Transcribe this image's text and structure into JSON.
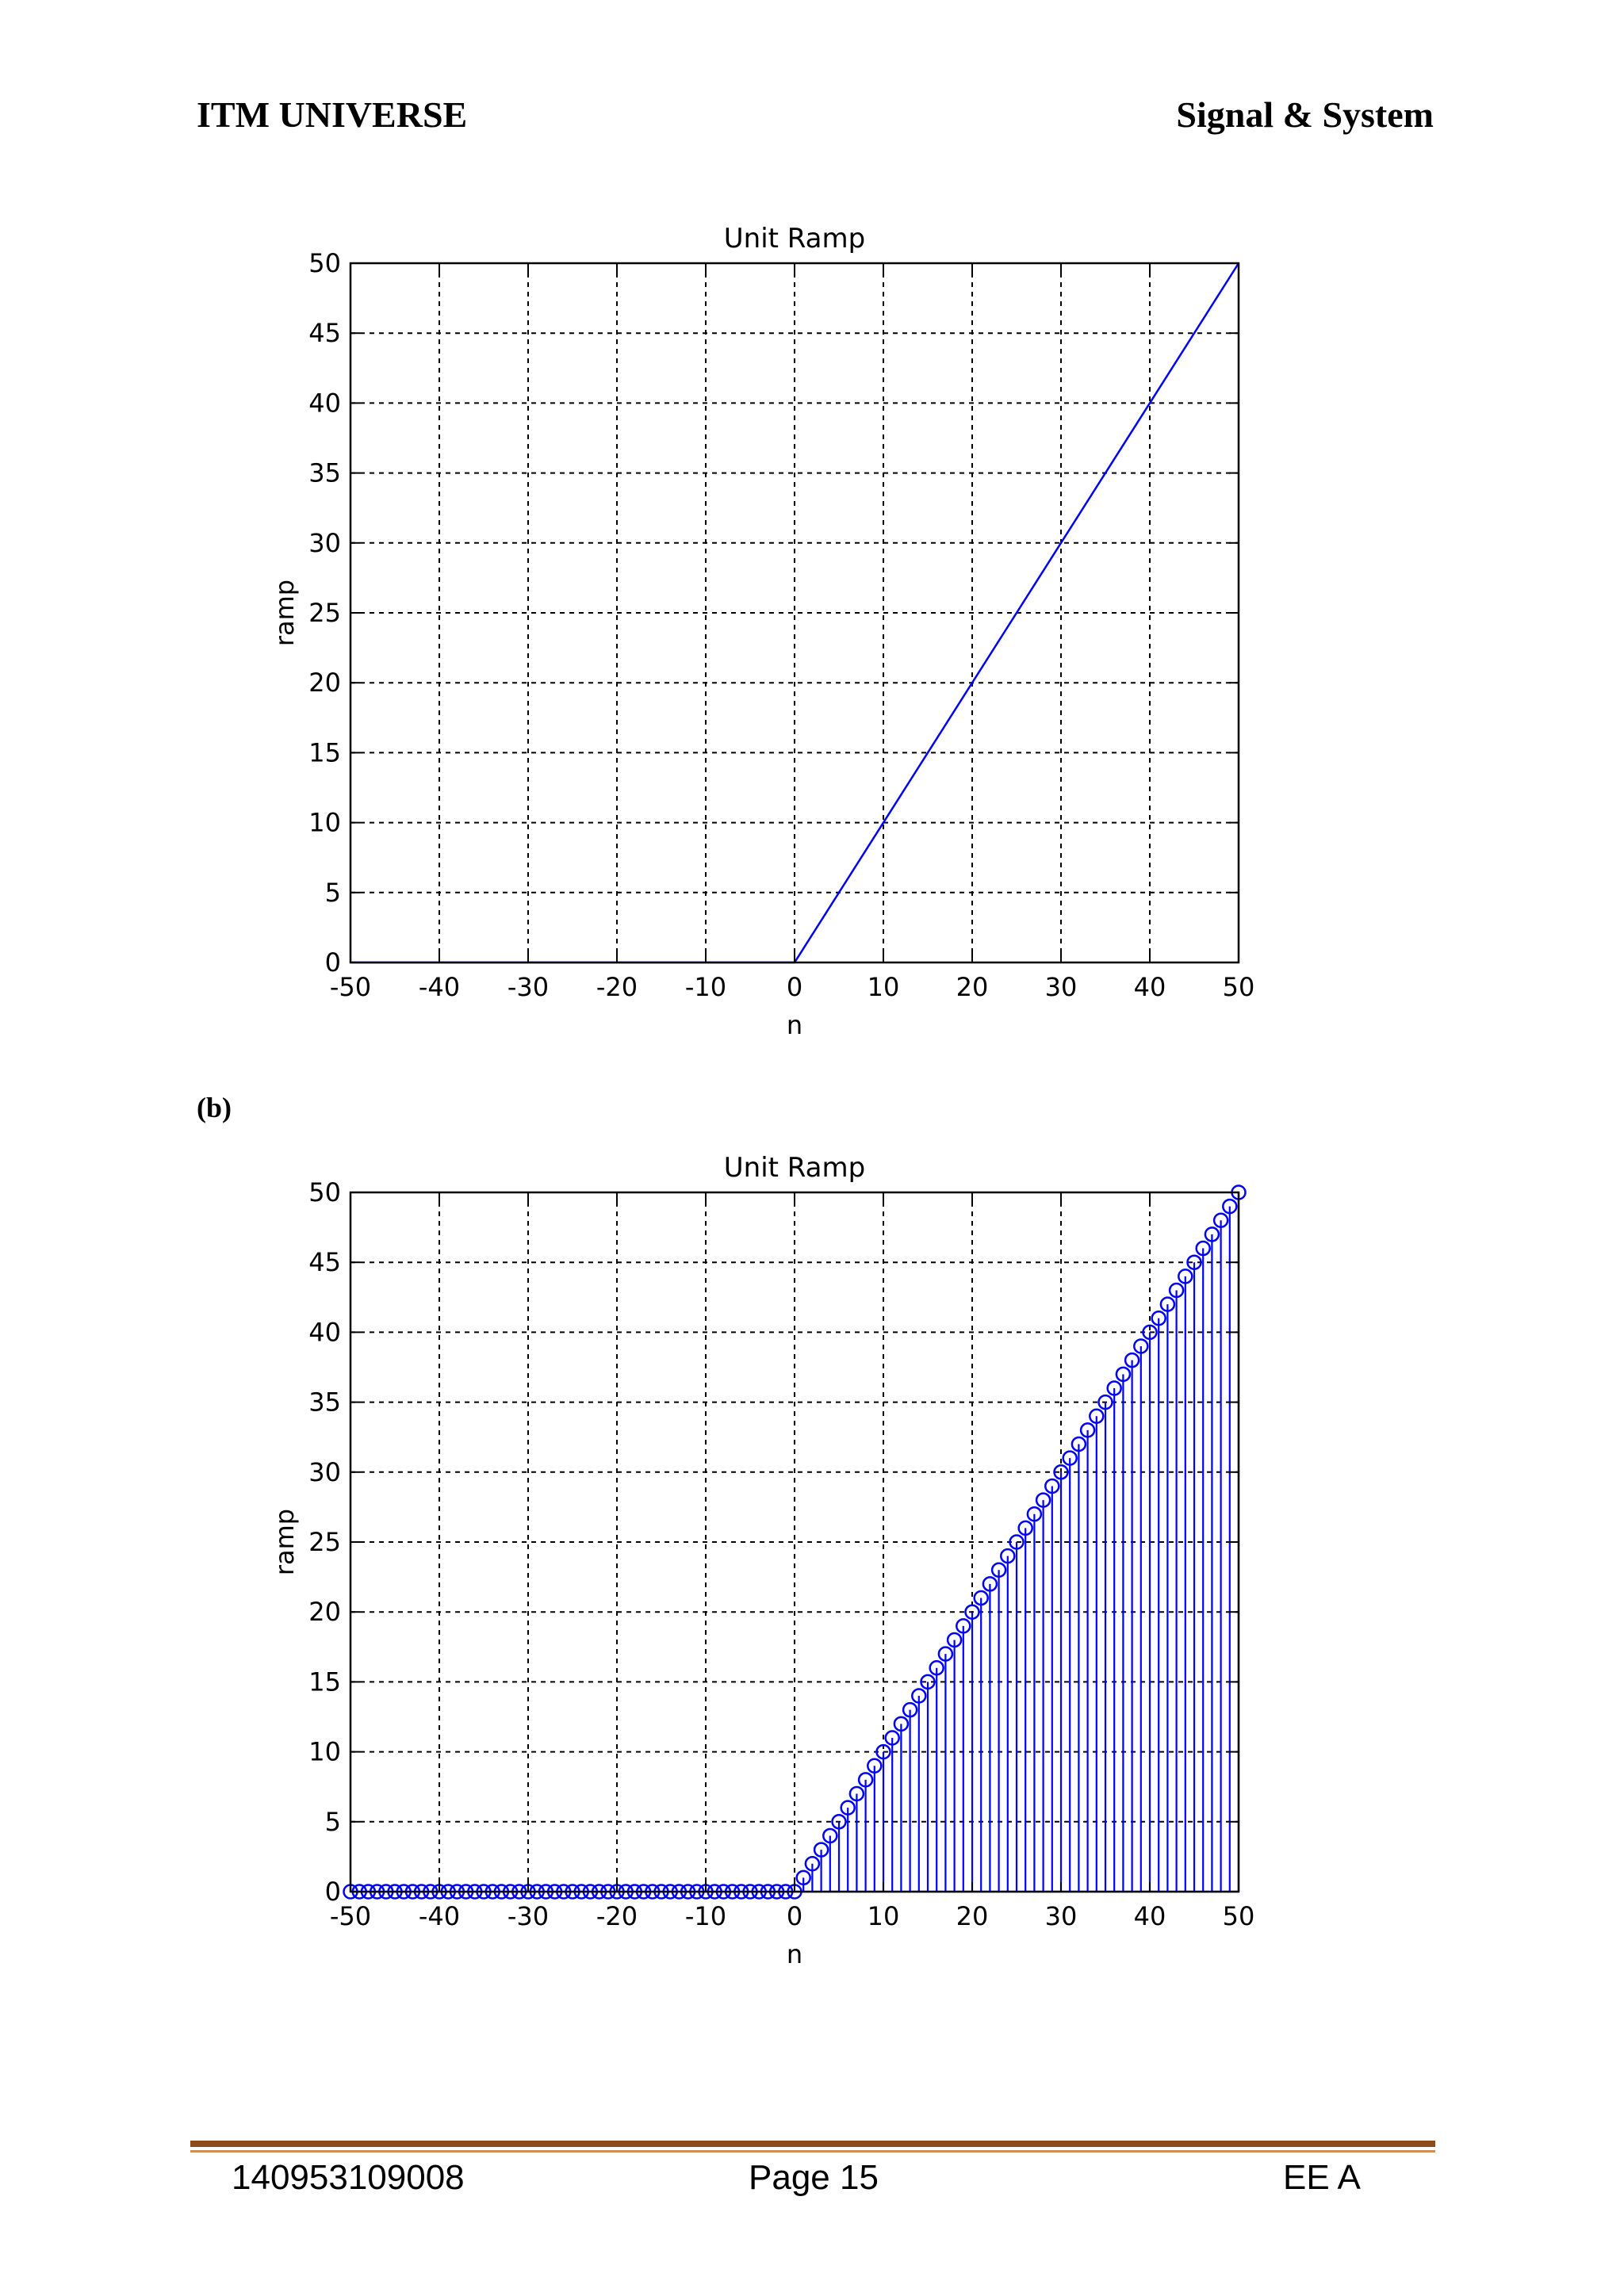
{
  "header": {
    "left": "ITM UNIVERSE",
    "right": "Signal & System"
  },
  "sublabel": "(b)",
  "footer": {
    "left": "140953109008",
    "center": "Page 15",
    "right": "EE A"
  },
  "chart_data": [
    {
      "type": "line",
      "title": "Unit Ramp",
      "xlabel": "n",
      "ylabel": "ramp",
      "xlim": [
        -50,
        50
      ],
      "ylim": [
        0,
        50
      ],
      "xticks": [
        -50,
        -40,
        -30,
        -20,
        -10,
        0,
        10,
        20,
        30,
        40,
        50
      ],
      "yticks": [
        0,
        5,
        10,
        15,
        20,
        25,
        30,
        35,
        40,
        45,
        50
      ],
      "grid": true,
      "color": "#0000ff",
      "x": [
        -50,
        0,
        50
      ],
      "y": [
        0,
        0,
        50
      ]
    },
    {
      "type": "stem",
      "title": "Unit Ramp",
      "xlabel": "n",
      "ylabel": "ramp",
      "xlim": [
        -50,
        50
      ],
      "ylim": [
        0,
        50
      ],
      "xticks": [
        -50,
        -40,
        -30,
        -20,
        -10,
        0,
        10,
        20,
        30,
        40,
        50
      ],
      "yticks": [
        0,
        5,
        10,
        15,
        20,
        25,
        30,
        35,
        40,
        45,
        50
      ],
      "grid": true,
      "color": "#0000ff",
      "n_range": [
        -50,
        50
      ],
      "rule": "ramp = n for n >= 0, else 0"
    }
  ]
}
